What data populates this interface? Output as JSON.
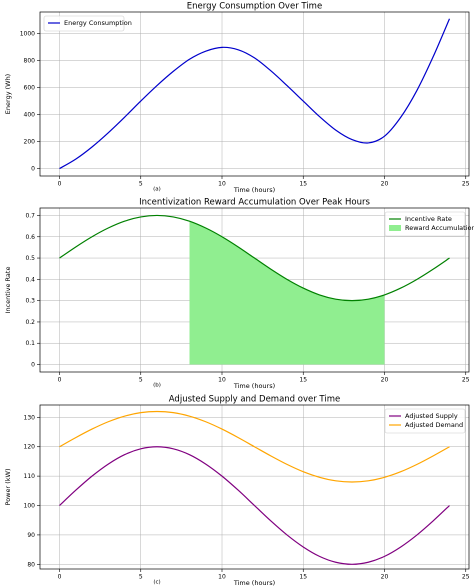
{
  "chart_data": [
    {
      "type": "line",
      "title": "Energy Consumption Over Time",
      "xlabel": "Time (hours)",
      "ylabel": "Energy (Wh)",
      "sublabel": "(a)",
      "xlim": [
        -1.2,
        25.2
      ],
      "ylim": [
        -55,
        1160
      ],
      "xticks": [
        0,
        5,
        10,
        15,
        20,
        25
      ],
      "yticks": [
        0,
        200,
        400,
        600,
        800,
        1000
      ],
      "grid": true,
      "legend_position": "top-left",
      "series": [
        {
          "name": "Energy Consumption",
          "color": "#0000cc",
          "x": [
            0,
            1,
            2,
            3,
            4,
            5,
            6,
            7,
            8,
            9,
            10,
            11,
            12,
            13,
            14,
            15,
            16,
            17,
            18,
            19,
            20,
            21,
            22,
            23,
            24
          ],
          "y": [
            0,
            70,
            160,
            265,
            380,
            500,
            615,
            720,
            810,
            870,
            898,
            880,
            820,
            725,
            615,
            500,
            385,
            285,
            215,
            190,
            240,
            380,
            580,
            830,
            1110
          ]
        }
      ]
    },
    {
      "type": "area",
      "title": "Incentivization Reward Accumulation Over Peak Hours",
      "xlabel": "Time (hours)",
      "ylabel": "Incentive Rate",
      "sublabel": "(b)",
      "xlim": [
        -1.2,
        25.2
      ],
      "ylim": [
        -0.035,
        0.735
      ],
      "xticks": [
        0,
        5,
        10,
        15,
        20,
        25
      ],
      "yticks": [
        0.0,
        0.1,
        0.2,
        0.3,
        0.4,
        0.5,
        0.6,
        0.7
      ],
      "grid": true,
      "legend_position": "top-right",
      "fill_range": [
        8,
        20
      ],
      "series": [
        {
          "name": "Incentive Rate",
          "color": "#008000",
          "x": [
            0,
            1,
            2,
            3,
            4,
            5,
            6,
            7,
            8,
            9,
            10,
            11,
            12,
            13,
            14,
            15,
            16,
            17,
            18,
            19,
            20,
            21,
            22,
            23,
            24
          ],
          "y": [
            0.5,
            0.552,
            0.6,
            0.641,
            0.673,
            0.693,
            0.7,
            0.693,
            0.673,
            0.641,
            0.6,
            0.552,
            0.5,
            0.448,
            0.4,
            0.359,
            0.327,
            0.307,
            0.3,
            0.307,
            0.327,
            0.359,
            0.4,
            0.448,
            0.5
          ]
        },
        {
          "name": "Reward Accumulation",
          "color": "#90ee90"
        }
      ]
    },
    {
      "type": "line",
      "title": "Adjusted Supply and Demand over Time",
      "xlabel": "Time (hours)",
      "ylabel": "Power (kW)",
      "sublabel": "(c)",
      "xlim": [
        -1.2,
        25.2
      ],
      "ylim": [
        78.4,
        134.2
      ],
      "xticks": [
        0,
        5,
        10,
        15,
        20,
        25
      ],
      "yticks": [
        80,
        90,
        100,
        110,
        120,
        130
      ],
      "grid": true,
      "legend_position": "top-right",
      "series": [
        {
          "name": "Adjusted Supply",
          "color": "#800080",
          "x": [
            0,
            1,
            2,
            3,
            4,
            5,
            6,
            7,
            8,
            9,
            10,
            11,
            12,
            13,
            14,
            15,
            16,
            17,
            18,
            19,
            20,
            21,
            22,
            23,
            24
          ],
          "y": [
            100,
            105.2,
            110,
            114.1,
            117.3,
            119.3,
            120,
            119.3,
            117.3,
            114.1,
            110,
            105.2,
            100,
            94.8,
            90,
            85.9,
            82.7,
            80.7,
            80,
            80.7,
            82.7,
            85.9,
            90,
            94.8,
            100
          ]
        },
        {
          "name": "Adjusted Demand",
          "color": "#ffa500",
          "x": [
            0,
            1,
            2,
            3,
            4,
            5,
            6,
            7,
            8,
            9,
            10,
            11,
            12,
            13,
            14,
            15,
            16,
            17,
            18,
            19,
            20,
            21,
            22,
            23,
            24
          ],
          "y": [
            120,
            123.1,
            126,
            128.5,
            130.4,
            131.6,
            132,
            131.6,
            130.4,
            128.5,
            126,
            123.1,
            120,
            116.9,
            114,
            111.5,
            109.6,
            108.4,
            108,
            108.4,
            109.6,
            111.5,
            114,
            116.9,
            120
          ]
        }
      ]
    }
  ]
}
